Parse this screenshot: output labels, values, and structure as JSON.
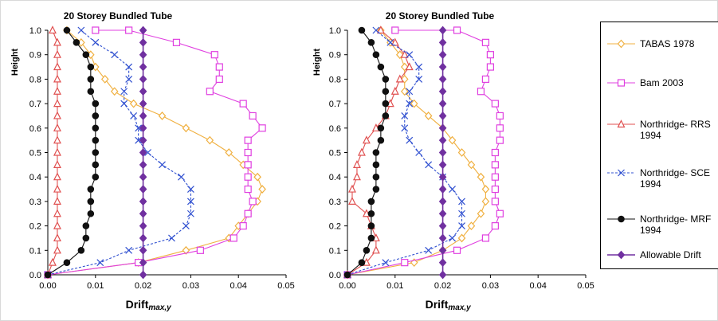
{
  "chart_data": [
    {
      "type": "line",
      "title": "20 Storey Bundled  Tube",
      "xlabel": "Drift",
      "xlabel_sub": "max,y",
      "ylabel": "Height",
      "xlim": [
        0,
        0.05
      ],
      "ylim": [
        0,
        1
      ],
      "x_ticks": [
        "0.00",
        "0.01",
        "0.02",
        "0.03",
        "0.04",
        "0.05"
      ],
      "y_ticks": [
        "0.0",
        "0.1",
        "0.2",
        "0.3",
        "0.4",
        "0.5",
        "0.6",
        "0.7",
        "0.8",
        "0.9",
        "1.0"
      ],
      "series": [
        {
          "name": "TABAS 1978",
          "color": "#F0B040",
          "marker": "diamond",
          "dash": "solid",
          "x": [
            0,
            0.019,
            0.029,
            0.038,
            0.04,
            0.042,
            0.044,
            0.045,
            0.044,
            0.041,
            0.038,
            0.034,
            0.029,
            0.024,
            0.018,
            0.014,
            0.012,
            0.01,
            0.009,
            0.007,
            0.004
          ],
          "y": [
            0,
            0.05,
            0.1,
            0.15,
            0.2,
            0.25,
            0.3,
            0.35,
            0.4,
            0.45,
            0.5,
            0.55,
            0.6,
            0.65,
            0.7,
            0.75,
            0.8,
            0.85,
            0.9,
            0.95,
            1.0
          ]
        },
        {
          "name": "Bam 2003",
          "color": "#E040E0",
          "marker": "square",
          "dash": "solid",
          "x": [
            0,
            0.019,
            0.032,
            0.039,
            0.041,
            0.042,
            0.043,
            0.042,
            0.042,
            0.042,
            0.042,
            0.042,
            0.045,
            0.043,
            0.041,
            0.034,
            0.036,
            0.036,
            0.035,
            0.027,
            0.017,
            0.01
          ],
          "y": [
            0,
            0.05,
            0.1,
            0.15,
            0.2,
            0.25,
            0.3,
            0.35,
            0.4,
            0.45,
            0.5,
            0.55,
            0.6,
            0.65,
            0.7,
            0.75,
            0.8,
            0.85,
            0.9,
            0.95,
            1.0,
            1.0
          ]
        },
        {
          "name": "Northridge- RRS 1994",
          "color": "#E05050",
          "marker": "triangle",
          "dash": "solid",
          "x": [
            0,
            0.001,
            0.002,
            0.002,
            0.002,
            0.002,
            0.002,
            0.002,
            0.002,
            0.002,
            0.002,
            0.002,
            0.002,
            0.002,
            0.002,
            0.002,
            0.002,
            0.002,
            0.002,
            0.002,
            0.001
          ],
          "y": [
            0,
            0.05,
            0.1,
            0.15,
            0.2,
            0.25,
            0.3,
            0.35,
            0.4,
            0.45,
            0.5,
            0.55,
            0.6,
            0.65,
            0.7,
            0.75,
            0.8,
            0.85,
            0.9,
            0.95,
            1.0
          ]
        },
        {
          "name": "Northridge- SCE 1994",
          "color": "#3050D0",
          "marker": "x",
          "dash": "dashed",
          "x": [
            0,
            0.011,
            0.017,
            0.026,
            0.029,
            0.03,
            0.03,
            0.03,
            0.028,
            0.024,
            0.021,
            0.019,
            0.019,
            0.018,
            0.016,
            0.016,
            0.017,
            0.017,
            0.014,
            0.01,
            0.007
          ],
          "y": [
            0,
            0.05,
            0.1,
            0.15,
            0.2,
            0.25,
            0.3,
            0.35,
            0.4,
            0.45,
            0.5,
            0.55,
            0.6,
            0.65,
            0.7,
            0.75,
            0.8,
            0.85,
            0.9,
            0.95,
            1.0
          ]
        },
        {
          "name": "Northridge- MRF 1994",
          "color": "#101010",
          "marker": "circle",
          "dash": "solid",
          "x": [
            0,
            0.004,
            0.007,
            0.008,
            0.008,
            0.009,
            0.009,
            0.009,
            0.01,
            0.01,
            0.01,
            0.01,
            0.01,
            0.01,
            0.01,
            0.009,
            0.009,
            0.009,
            0.008,
            0.006,
            0.004
          ],
          "y": [
            0,
            0.05,
            0.1,
            0.15,
            0.2,
            0.25,
            0.3,
            0.35,
            0.4,
            0.45,
            0.5,
            0.55,
            0.6,
            0.65,
            0.7,
            0.75,
            0.8,
            0.85,
            0.9,
            0.95,
            1.0
          ]
        },
        {
          "name": "Allowable Drift",
          "color": "#7030A0",
          "marker": "diamond-filled",
          "dash": "solid",
          "x": [
            0.02,
            0.02,
            0.02,
            0.02,
            0.02,
            0.02,
            0.02,
            0.02,
            0.02,
            0.02,
            0.02,
            0.02,
            0.02,
            0.02,
            0.02,
            0.02,
            0.02,
            0.02,
            0.02,
            0.02,
            0.02
          ],
          "y": [
            0,
            0.05,
            0.1,
            0.15,
            0.2,
            0.25,
            0.3,
            0.35,
            0.4,
            0.45,
            0.5,
            0.55,
            0.6,
            0.65,
            0.7,
            0.75,
            0.8,
            0.85,
            0.9,
            0.95,
            1.0
          ]
        }
      ]
    },
    {
      "type": "line",
      "title": "20 Storey Bundled  Tube",
      "xlabel": "Drift",
      "xlabel_sub": "max,y",
      "ylabel": "Height",
      "xlim": [
        0,
        0.05
      ],
      "ylim": [
        0,
        1
      ],
      "x_ticks": [
        "0.00",
        "0.01",
        "0.02",
        "0.03",
        "0.04",
        "0.05"
      ],
      "y_ticks": [
        "0.0",
        "0.1",
        "0.2",
        "0.3",
        "0.4",
        "0.5",
        "0.6",
        "0.7",
        "0.8",
        "0.9",
        "1.0"
      ],
      "series": [
        {
          "name": "TABAS 1978",
          "color": "#F0B040",
          "marker": "diamond",
          "dash": "solid",
          "x": [
            0,
            0.014,
            0.02,
            0.024,
            0.026,
            0.028,
            0.029,
            0.029,
            0.028,
            0.026,
            0.024,
            0.022,
            0.02,
            0.017,
            0.014,
            0.012,
            0.012,
            0.012,
            0.011,
            0.009,
            0.007
          ],
          "y": [
            0,
            0.05,
            0.1,
            0.15,
            0.2,
            0.25,
            0.3,
            0.35,
            0.4,
            0.45,
            0.5,
            0.55,
            0.6,
            0.65,
            0.7,
            0.75,
            0.8,
            0.85,
            0.9,
            0.95,
            1.0
          ]
        },
        {
          "name": "Bam 2003",
          "color": "#E040E0",
          "marker": "square",
          "dash": "solid",
          "x": [
            0,
            0.012,
            0.023,
            0.029,
            0.031,
            0.032,
            0.031,
            0.031,
            0.031,
            0.031,
            0.031,
            0.032,
            0.032,
            0.032,
            0.031,
            0.028,
            0.029,
            0.03,
            0.03,
            0.029,
            0.023,
            0.01
          ],
          "y": [
            0,
            0.05,
            0.1,
            0.15,
            0.2,
            0.25,
            0.3,
            0.35,
            0.4,
            0.45,
            0.5,
            0.55,
            0.6,
            0.65,
            0.7,
            0.75,
            0.8,
            0.85,
            0.9,
            0.95,
            1.0,
            1.0
          ]
        },
        {
          "name": "Northridge- RRS 1994",
          "color": "#E05050",
          "marker": "triangle",
          "dash": "solid",
          "x": [
            0,
            0.004,
            0.006,
            0.006,
            0.005,
            0.004,
            0.001,
            0.001,
            0.002,
            0.002,
            0.003,
            0.004,
            0.006,
            0.008,
            0.009,
            0.01,
            0.011,
            0.013,
            0.012,
            0.01,
            0.007
          ],
          "y": [
            0,
            0.05,
            0.1,
            0.15,
            0.2,
            0.25,
            0.3,
            0.35,
            0.4,
            0.45,
            0.5,
            0.55,
            0.6,
            0.65,
            0.7,
            0.75,
            0.8,
            0.85,
            0.9,
            0.95,
            1.0
          ]
        },
        {
          "name": "Northridge- SCE 1994",
          "color": "#3050D0",
          "marker": "x",
          "dash": "dashed",
          "x": [
            0,
            0.008,
            0.017,
            0.022,
            0.024,
            0.024,
            0.024,
            0.022,
            0.02,
            0.017,
            0.015,
            0.013,
            0.012,
            0.012,
            0.013,
            0.013,
            0.015,
            0.015,
            0.013,
            0.009,
            0.006
          ],
          "y": [
            0,
            0.05,
            0.1,
            0.15,
            0.2,
            0.25,
            0.3,
            0.35,
            0.4,
            0.45,
            0.5,
            0.55,
            0.6,
            0.65,
            0.7,
            0.75,
            0.8,
            0.85,
            0.9,
            0.95,
            1.0
          ]
        },
        {
          "name": "Northridge- MRF 1994",
          "color": "#101010",
          "marker": "circle",
          "dash": "solid",
          "x": [
            0,
            0.003,
            0.004,
            0.005,
            0.005,
            0.005,
            0.005,
            0.006,
            0.006,
            0.006,
            0.006,
            0.007,
            0.007,
            0.008,
            0.008,
            0.008,
            0.008,
            0.007,
            0.006,
            0.005,
            0.003
          ],
          "y": [
            0,
            0.05,
            0.1,
            0.15,
            0.2,
            0.25,
            0.3,
            0.35,
            0.4,
            0.45,
            0.5,
            0.55,
            0.6,
            0.65,
            0.7,
            0.75,
            0.8,
            0.85,
            0.9,
            0.95,
            1.0
          ]
        },
        {
          "name": "Allowable Drift",
          "color": "#7030A0",
          "marker": "diamond-filled",
          "dash": "solid",
          "x": [
            0.02,
            0.02,
            0.02,
            0.02,
            0.02,
            0.02,
            0.02,
            0.02,
            0.02,
            0.02,
            0.02,
            0.02,
            0.02,
            0.02,
            0.02,
            0.02,
            0.02,
            0.02,
            0.02,
            0.02,
            0.02
          ],
          "y": [
            0,
            0.05,
            0.1,
            0.15,
            0.2,
            0.25,
            0.3,
            0.35,
            0.4,
            0.45,
            0.5,
            0.55,
            0.6,
            0.65,
            0.7,
            0.75,
            0.8,
            0.85,
            0.9,
            0.95,
            1.0
          ]
        }
      ]
    }
  ],
  "legend": {
    "items": [
      {
        "label": "TABAS 1978",
        "color": "#F0B040",
        "marker": "diamond",
        "dash": "solid"
      },
      {
        "label": "Bam 2003",
        "color": "#E040E0",
        "marker": "square",
        "dash": "solid"
      },
      {
        "label": "Northridge- RRS\n1994",
        "color": "#E05050",
        "marker": "triangle",
        "dash": "solid"
      },
      {
        "label": "Northridge- SCE\n1994",
        "color": "#3050D0",
        "marker": "x",
        "dash": "dashed"
      },
      {
        "label": "Northridge- MRF\n1994",
        "color": "#101010",
        "marker": "circle",
        "dash": "solid"
      },
      {
        "label": "Allowable Drift",
        "color": "#7030A0",
        "marker": "diamond-filled",
        "dash": "solid"
      }
    ]
  }
}
